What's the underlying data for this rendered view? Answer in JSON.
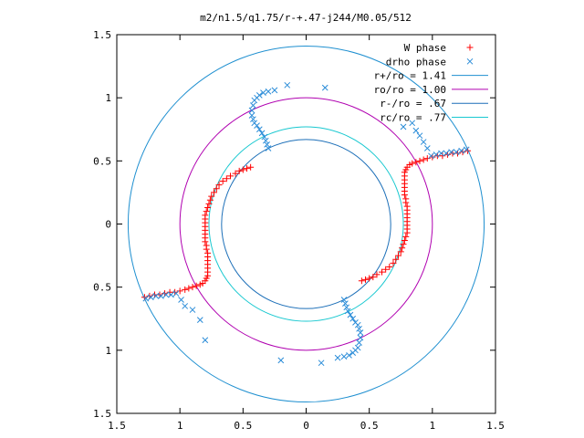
{
  "chart_data": {
    "type": "scatter",
    "title": "m2/n1.5/q1.75/r-+.47-j244/M0.05/512",
    "xlim": [
      -1.5,
      1.5
    ],
    "ylim": [
      -1.5,
      1.5
    ],
    "x_tick_labels": [
      "1.5",
      "1",
      "0.5",
      "0",
      "0.5",
      "1",
      "1.5"
    ],
    "x_tick_values": [
      -1.5,
      -1,
      -0.5,
      0,
      0.5,
      1,
      1.5
    ],
    "y_tick_labels": [
      "1.5",
      "1",
      "0.5",
      "0",
      "0.5",
      "1",
      "1.5"
    ],
    "y_tick_values": [
      1.5,
      1,
      0.5,
      0,
      -0.5,
      -1,
      -1.5
    ],
    "grid": false,
    "legend_position": "top-right",
    "legend": [
      {
        "label": "W phase",
        "symbol": "plus",
        "color": "#ff0000"
      },
      {
        "label": "drho phase",
        "symbol": "cross",
        "color": "#2a8cd8"
      },
      {
        "label": "r+/ro = 1.41",
        "symbol": "line",
        "color": "#1e8fd0"
      },
      {
        "label": "ro/ro = 1.00",
        "symbol": "line",
        "color": "#b000b0"
      },
      {
        "label": "r-/ro = .67",
        "symbol": "line",
        "color": "#1c6fb8"
      },
      {
        "label": "rc/ro = .77",
        "symbol": "line",
        "color": "#18c8d0"
      }
    ],
    "circles": [
      {
        "name": "r+/ro = 1.41",
        "radius": 1.41,
        "color": "#1e8fd0"
      },
      {
        "name": "ro/ro = 1.00",
        "radius": 1.0,
        "color": "#b000b0"
      },
      {
        "name": "r-/ro = .67",
        "radius": 0.67,
        "color": "#1c6fb8"
      },
      {
        "name": "rc/ro = .77",
        "radius": 0.77,
        "color": "#18c8d0"
      }
    ],
    "series": [
      {
        "name": "W phase",
        "color": "#ff0000",
        "symbol": "plus",
        "points": [
          [
            -1.28,
            -0.58
          ],
          [
            -1.24,
            -0.57
          ],
          [
            -1.2,
            -0.56
          ],
          [
            -1.16,
            -0.56
          ],
          [
            -1.12,
            -0.55
          ],
          [
            -1.08,
            -0.54
          ],
          [
            -1.04,
            -0.54
          ],
          [
            -1.0,
            -0.53
          ],
          [
            -0.96,
            -0.52
          ],
          [
            -0.93,
            -0.51
          ],
          [
            -0.9,
            -0.5
          ],
          [
            -0.87,
            -0.49
          ],
          [
            -0.84,
            -0.48
          ],
          [
            -0.82,
            -0.47
          ],
          [
            -0.8,
            -0.45
          ],
          [
            -0.79,
            -0.43
          ],
          [
            -0.78,
            -0.41
          ],
          [
            -0.78,
            -0.38
          ],
          [
            -0.78,
            -0.35
          ],
          [
            -0.78,
            -0.32
          ],
          [
            -0.78,
            -0.29
          ],
          [
            -0.78,
            -0.26
          ],
          [
            -0.78,
            -0.23
          ],
          [
            -0.79,
            -0.2
          ],
          [
            -0.79,
            -0.17
          ],
          [
            -0.8,
            -0.14
          ],
          [
            -0.8,
            -0.11
          ],
          [
            -0.8,
            -0.08
          ],
          [
            -0.8,
            -0.05
          ],
          [
            -0.8,
            -0.02
          ],
          [
            -0.8,
            0.01
          ],
          [
            -0.8,
            0.04
          ],
          [
            -0.8,
            0.07
          ],
          [
            -0.79,
            0.1
          ],
          [
            -0.78,
            0.13
          ],
          [
            -0.77,
            0.16
          ],
          [
            -0.76,
            0.19
          ],
          [
            -0.75,
            0.22
          ],
          [
            -0.73,
            0.25
          ],
          [
            -0.71,
            0.28
          ],
          [
            -0.69,
            0.31
          ],
          [
            -0.66,
            0.34
          ],
          [
            -0.63,
            0.36
          ],
          [
            -0.6,
            0.38
          ],
          [
            -0.56,
            0.4
          ],
          [
            -0.53,
            0.42
          ],
          [
            -0.5,
            0.43
          ],
          [
            -0.47,
            0.44
          ],
          [
            -0.44,
            0.45
          ],
          [
            1.28,
            0.58
          ],
          [
            1.24,
            0.57
          ],
          [
            1.2,
            0.56
          ],
          [
            1.16,
            0.56
          ],
          [
            1.12,
            0.55
          ],
          [
            1.08,
            0.54
          ],
          [
            1.04,
            0.54
          ],
          [
            1.0,
            0.53
          ],
          [
            0.96,
            0.52
          ],
          [
            0.93,
            0.51
          ],
          [
            0.9,
            0.5
          ],
          [
            0.87,
            0.49
          ],
          [
            0.84,
            0.48
          ],
          [
            0.82,
            0.47
          ],
          [
            0.8,
            0.45
          ],
          [
            0.79,
            0.43
          ],
          [
            0.78,
            0.41
          ],
          [
            0.78,
            0.38
          ],
          [
            0.78,
            0.35
          ],
          [
            0.78,
            0.32
          ],
          [
            0.78,
            0.29
          ],
          [
            0.78,
            0.26
          ],
          [
            0.78,
            0.23
          ],
          [
            0.79,
            0.2
          ],
          [
            0.79,
            0.17
          ],
          [
            0.8,
            0.14
          ],
          [
            0.8,
            0.11
          ],
          [
            0.8,
            0.08
          ],
          [
            0.8,
            0.05
          ],
          [
            0.8,
            0.02
          ],
          [
            0.8,
            -0.01
          ],
          [
            0.8,
            -0.04
          ],
          [
            0.8,
            -0.07
          ],
          [
            0.79,
            -0.1
          ],
          [
            0.78,
            -0.13
          ],
          [
            0.77,
            -0.16
          ],
          [
            0.76,
            -0.19
          ],
          [
            0.75,
            -0.22
          ],
          [
            0.73,
            -0.25
          ],
          [
            0.71,
            -0.28
          ],
          [
            0.69,
            -0.31
          ],
          [
            0.66,
            -0.34
          ],
          [
            0.63,
            -0.36
          ],
          [
            0.6,
            -0.38
          ],
          [
            0.56,
            -0.4
          ],
          [
            0.53,
            -0.42
          ],
          [
            0.5,
            -0.43
          ],
          [
            0.47,
            -0.44
          ],
          [
            0.44,
            -0.45
          ]
        ]
      },
      {
        "name": "drho phase",
        "color": "#2a8cd8",
        "symbol": "cross",
        "points": [
          [
            1.27,
            0.59
          ],
          [
            1.23,
            0.58
          ],
          [
            1.19,
            0.57
          ],
          [
            1.15,
            0.57
          ],
          [
            1.11,
            0.56
          ],
          [
            1.07,
            0.56
          ],
          [
            1.03,
            0.55
          ],
          [
            0.99,
            0.54
          ],
          [
            0.96,
            0.6
          ],
          [
            0.93,
            0.65
          ],
          [
            0.9,
            0.7
          ],
          [
            0.87,
            0.74
          ],
          [
            0.84,
            0.8
          ],
          [
            0.77,
            0.77
          ],
          [
            0.3,
            -0.6
          ],
          [
            0.31,
            -0.63
          ],
          [
            0.32,
            -0.66
          ],
          [
            0.33,
            -0.69
          ],
          [
            0.35,
            -0.72
          ],
          [
            0.37,
            -0.75
          ],
          [
            0.39,
            -0.78
          ],
          [
            0.41,
            -0.8
          ],
          [
            0.42,
            -0.83
          ],
          [
            0.43,
            -0.86
          ],
          [
            0.43,
            -0.9
          ],
          [
            0.42,
            -0.94
          ],
          [
            0.41,
            -0.98
          ],
          [
            0.39,
            -1.0
          ],
          [
            0.37,
            -1.02
          ],
          [
            0.34,
            -1.04
          ],
          [
            0.3,
            -1.05
          ],
          [
            0.25,
            -1.06
          ],
          [
            0.12,
            -1.1
          ],
          [
            -0.2,
            -1.08
          ],
          [
            -0.8,
            -0.92
          ],
          [
            -0.3,
            0.6
          ],
          [
            -0.31,
            0.63
          ],
          [
            -0.32,
            0.66
          ],
          [
            -0.33,
            0.69
          ],
          [
            -0.35,
            0.72
          ],
          [
            -0.37,
            0.75
          ],
          [
            -0.39,
            0.78
          ],
          [
            -0.41,
            0.8
          ],
          [
            -0.42,
            0.83
          ],
          [
            -0.43,
            0.86
          ],
          [
            -0.43,
            0.9
          ],
          [
            -0.42,
            0.94
          ],
          [
            -0.41,
            0.98
          ],
          [
            -0.39,
            1.0
          ],
          [
            -0.37,
            1.02
          ],
          [
            -0.34,
            1.04
          ],
          [
            -0.3,
            1.05
          ],
          [
            -0.25,
            1.06
          ],
          [
            -0.15,
            1.1
          ],
          [
            0.15,
            1.08
          ],
          [
            -1.27,
            -0.59
          ],
          [
            -1.23,
            -0.58
          ],
          [
            -1.19,
            -0.57
          ],
          [
            -1.15,
            -0.57
          ],
          [
            -1.11,
            -0.56
          ],
          [
            -1.07,
            -0.56
          ],
          [
            -1.03,
            -0.55
          ],
          [
            -0.99,
            -0.6
          ],
          [
            -0.96,
            -0.65
          ],
          [
            -0.9,
            -0.68
          ],
          [
            -0.84,
            -0.76
          ]
        ]
      }
    ]
  }
}
